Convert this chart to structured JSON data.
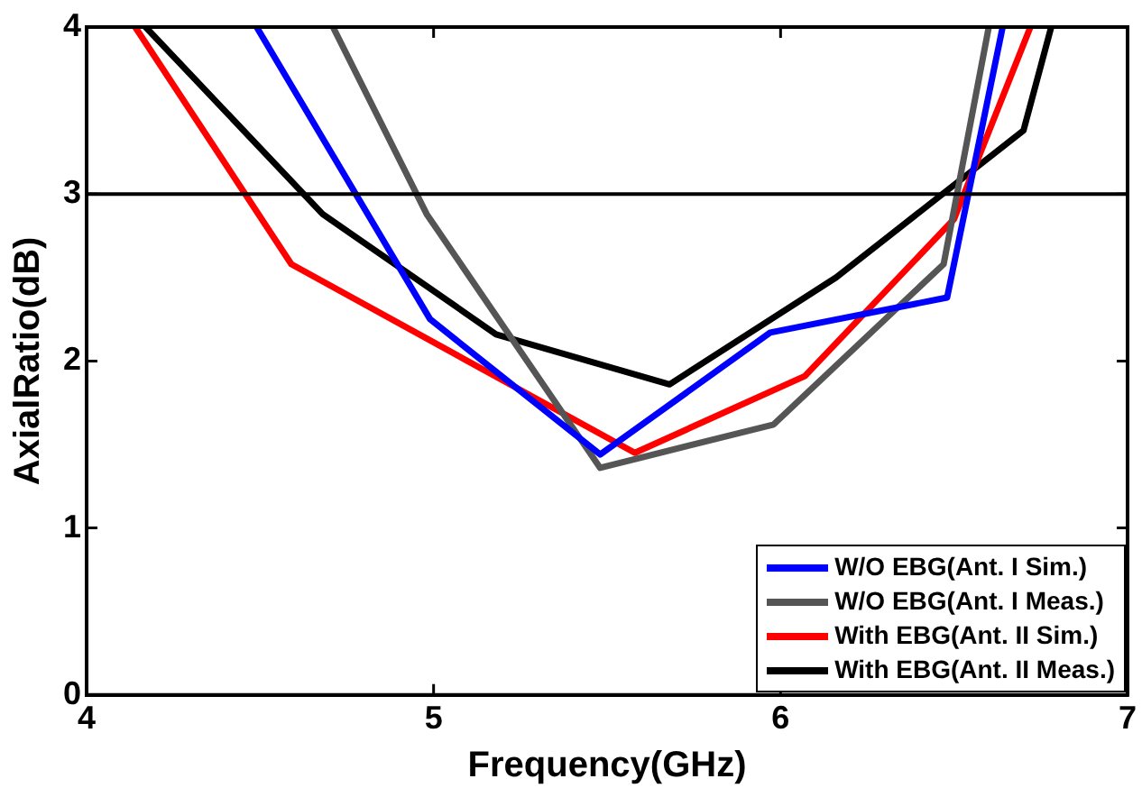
{
  "chart_data": {
    "type": "line",
    "xlabel": "Frequency(GHz)",
    "ylabel": "AxialRatio(dB)",
    "xlim": [
      4,
      7
    ],
    "xticks": [
      4,
      5,
      6,
      7
    ],
    "ylim": [
      0,
      4
    ],
    "yticks": [
      0,
      1,
      2,
      3,
      4
    ],
    "grid": false,
    "legend": "bottom right",
    "marker": "none",
    "line_style": "solid",
    "ref_lines": [
      {
        "axis": "y",
        "value": 3,
        "color": "#000000"
      }
    ],
    "series": [
      {
        "name": "W/O EBG(Ant. I Sim.)",
        "color": "#0000ff",
        "x": [
          4.49,
          4.99,
          5.48,
          5.97,
          6.48,
          6.64
        ],
        "values": [
          4,
          2.25,
          1.44,
          2.17,
          2.38,
          4
        ]
      },
      {
        "name": "W/O EBG(Ant. I Meas.)",
        "color": "#555555",
        "x": [
          4.71,
          4.98,
          5.48,
          5.98,
          6.47,
          6.6
        ],
        "values": [
          4,
          2.88,
          1.36,
          1.62,
          2.58,
          4
        ]
      },
      {
        "name": "With EBG(Ant. II Sim.)",
        "color": "#ff0000",
        "x": [
          4.14,
          4.59,
          5.58,
          6.07,
          6.5,
          6.72
        ],
        "values": [
          4,
          2.58,
          1.45,
          1.91,
          2.85,
          4
        ]
      },
      {
        "name": "With EBG(Ant. II Meas.)",
        "color": "#000000",
        "x": [
          4.17,
          4.68,
          5.18,
          5.68,
          6.16,
          6.7,
          6.78
        ],
        "values": [
          4,
          2.88,
          2.16,
          1.86,
          2.5,
          3.38,
          4
        ]
      }
    ]
  }
}
